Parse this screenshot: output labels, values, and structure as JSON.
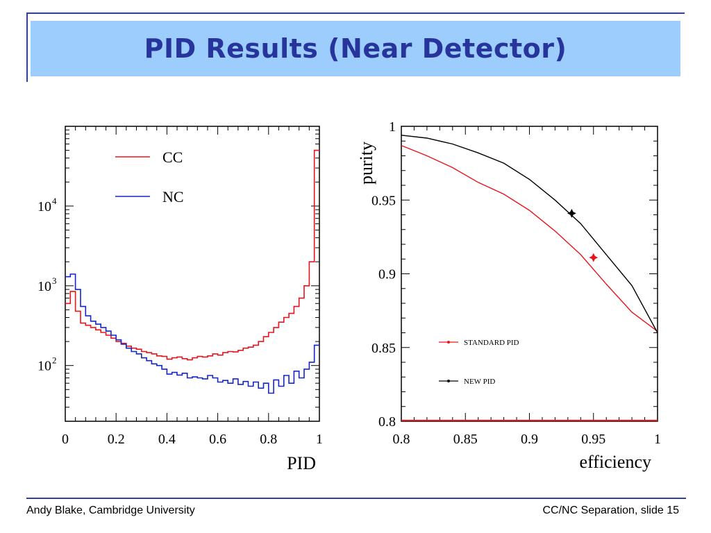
{
  "slide": {
    "title": "PID Results (Near Detector)",
    "footer_left": "Andy Blake, Cambridge University",
    "footer_right": "CC/NC Separation, slide 15",
    "colors": {
      "title_band": "#9ccdfc",
      "title_text": "#26349c",
      "rule": "#2f3f9a"
    }
  },
  "chart_data": [
    {
      "type": "line",
      "drawstyle": "steps",
      "xlabel": "PID",
      "ylabel": "",
      "xlim": [
        0,
        1
      ],
      "ylim": [
        20,
        100000
      ],
      "yscale": "log",
      "xticks": [
        "0",
        "0.2",
        "0.4",
        "0.6",
        "0.8",
        "1"
      ],
      "yticks": [
        {
          "value": 100,
          "base": "10",
          "exp": "2"
        },
        {
          "value": 1000,
          "base": "10",
          "exp": "3"
        },
        {
          "value": 10000,
          "base": "10",
          "exp": "4"
        }
      ],
      "legend_position": "top-left",
      "bin_edges": [
        0,
        0.02,
        0.04,
        0.06,
        0.08,
        0.1,
        0.12,
        0.14,
        0.16,
        0.18,
        0.2,
        0.22,
        0.24,
        0.26,
        0.28,
        0.3,
        0.32,
        0.34,
        0.36,
        0.38,
        0.4,
        0.42,
        0.44,
        0.46,
        0.48,
        0.5,
        0.52,
        0.54,
        0.56,
        0.58,
        0.6,
        0.62,
        0.64,
        0.66,
        0.68,
        0.7,
        0.72,
        0.74,
        0.76,
        0.78,
        0.8,
        0.82,
        0.84,
        0.86,
        0.88,
        0.9,
        0.92,
        0.94,
        0.96,
        0.98,
        0.99,
        1.0
      ],
      "series": [
        {
          "name": "CC",
          "color": "#e8141c",
          "values": [
            600,
            850,
            480,
            340,
            320,
            300,
            280,
            260,
            240,
            220,
            200,
            190,
            175,
            165,
            160,
            150,
            145,
            140,
            132,
            130,
            120,
            125,
            128,
            122,
            118,
            125,
            130,
            128,
            132,
            140,
            135,
            145,
            150,
            148,
            155,
            165,
            170,
            180,
            200,
            230,
            260,
            300,
            350,
            400,
            450,
            550,
            700,
            1000,
            2000,
            50000,
            50000
          ]
        },
        {
          "name": "NC",
          "color": "#1226c8",
          "values": [
            1300,
            1400,
            900,
            550,
            420,
            360,
            330,
            300,
            270,
            240,
            210,
            185,
            165,
            150,
            140,
            125,
            115,
            105,
            100,
            90,
            78,
            82,
            76,
            80,
            70,
            72,
            70,
            68,
            75,
            70,
            62,
            65,
            60,
            68,
            58,
            63,
            55,
            62,
            52,
            60,
            45,
            66,
            55,
            75,
            60,
            85,
            70,
            90,
            110,
            180,
            180
          ]
        }
      ]
    },
    {
      "type": "line",
      "xlabel": "efficiency",
      "ylabel": "purity",
      "xlim": [
        0.8,
        1.0
      ],
      "ylim": [
        0.8,
        1.0
      ],
      "xticks": [
        "0.8",
        "0.85",
        "0.9",
        "0.95",
        "1"
      ],
      "yticks": [
        "0.8",
        "0.85",
        "0.9",
        "0.95",
        "1"
      ],
      "legend_position": "bottom-left",
      "series": [
        {
          "name": "STANDARD PID",
          "color": "#e8141c",
          "x": [
            0.8,
            0.82,
            0.84,
            0.86,
            0.88,
            0.9,
            0.92,
            0.94,
            0.96,
            0.98,
            1.0
          ],
          "y": [
            0.987,
            0.98,
            0.972,
            0.962,
            0.954,
            0.943,
            0.929,
            0.913,
            0.893,
            0.874,
            0.861
          ],
          "marker": {
            "x": 0.95,
            "y": 0.911
          }
        },
        {
          "name": "NEW PID",
          "color": "#000000",
          "x": [
            0.8,
            0.82,
            0.84,
            0.86,
            0.88,
            0.9,
            0.92,
            0.94,
            0.96,
            0.98,
            1.0
          ],
          "y": [
            0.994,
            0.992,
            0.988,
            0.982,
            0.975,
            0.964,
            0.95,
            0.934,
            0.913,
            0.892,
            0.86
          ],
          "marker": {
            "x": 0.933,
            "y": 0.941
          }
        },
        {
          "name": "",
          "color": "#e8141c",
          "x": [
            0.8,
            1.0
          ],
          "y": [
            0.8005,
            0.8005
          ]
        }
      ]
    }
  ]
}
